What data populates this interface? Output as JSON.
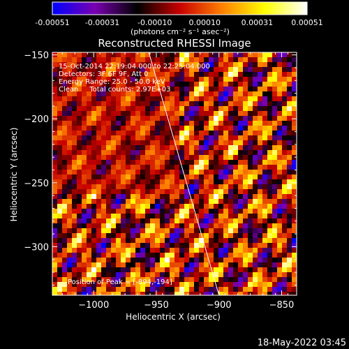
{
  "chart_data": {
    "type": "heatmap",
    "title": "Reconstructed RHESSI Image",
    "colorbar": {
      "ticks": [
        "-0.00051",
        "-0.00031",
        "-0.00010",
        "0.00010",
        "0.00031",
        "0.00051"
      ],
      "range": [
        -0.00051,
        0.00051
      ],
      "unit_label": "(photons cm⁻² s⁻¹ asec⁻²)",
      "colormap": [
        "#0000ff",
        "#7a00b0",
        "#000000",
        "#c80000",
        "#ff8000",
        "#ffff00",
        "#ffffff"
      ]
    },
    "info_lines": [
      "15-Oct-2014 22:19:04.000 to 22:25:04.000",
      "Detectors: 3F 6F 9F, Att 0",
      "Energy Range: 25.0 - 50.0 keV",
      "Clean     Total counts: 2.97E+03"
    ],
    "peak_label": "Position of Peak = [-894,-194]",
    "xlabel": "Heliocentric X (arcsec)",
    "ylabel": "Heliocentric Y (arcsec)",
    "xlim": [
      -1033,
      -838
    ],
    "ylim": [
      -338,
      -148
    ],
    "x_ticks": [
      -1000,
      -950,
      -900,
      -850
    ],
    "x_tick_labels": [
      "−1000",
      "−950",
      "−900",
      "−850"
    ],
    "y_ticks": [
      -300,
      -250,
      -200,
      -150
    ],
    "y_tick_labels": [
      "−300",
      "−250",
      "−200",
      "−150"
    ],
    "limb_line": {
      "x": [
        -956,
        -900
      ],
      "y": [
        -148,
        -338
      ]
    },
    "grid": false
  },
  "footer": {
    "date": "18-May-2022 03:45"
  }
}
